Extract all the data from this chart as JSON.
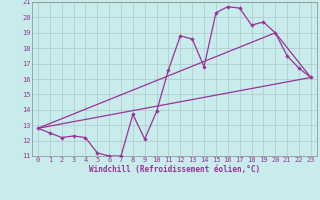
{
  "xlabel": "Windchill (Refroidissement éolien,°C)",
  "bg_color": "#c8ecec",
  "line_color": "#993399",
  "grid_color": "#b0c8c8",
  "xlim": [
    -0.5,
    23.5
  ],
  "ylim": [
    11,
    21
  ],
  "xticks": [
    0,
    1,
    2,
    3,
    4,
    5,
    6,
    7,
    8,
    9,
    10,
    11,
    12,
    13,
    14,
    15,
    16,
    17,
    18,
    19,
    20,
    21,
    22,
    23
  ],
  "yticks": [
    11,
    12,
    13,
    14,
    15,
    16,
    17,
    18,
    19,
    20,
    21
  ],
  "line1_x": [
    0,
    1,
    2,
    3,
    4,
    5,
    6,
    7,
    8,
    9,
    10,
    11,
    12,
    13,
    14,
    15,
    16,
    17,
    18,
    19,
    20,
    21,
    22,
    23
  ],
  "line1_y": [
    12.8,
    12.5,
    12.2,
    12.3,
    12.2,
    11.2,
    11.0,
    11.0,
    13.7,
    12.1,
    13.9,
    16.6,
    18.8,
    18.6,
    16.8,
    20.3,
    20.7,
    20.6,
    19.5,
    19.7,
    19.0,
    17.5,
    16.7,
    16.1
  ],
  "line2_x": [
    0,
    23
  ],
  "line2_y": [
    12.8,
    16.1
  ],
  "line3_x": [
    0,
    20,
    23
  ],
  "line3_y": [
    12.8,
    19.0,
    16.1
  ]
}
